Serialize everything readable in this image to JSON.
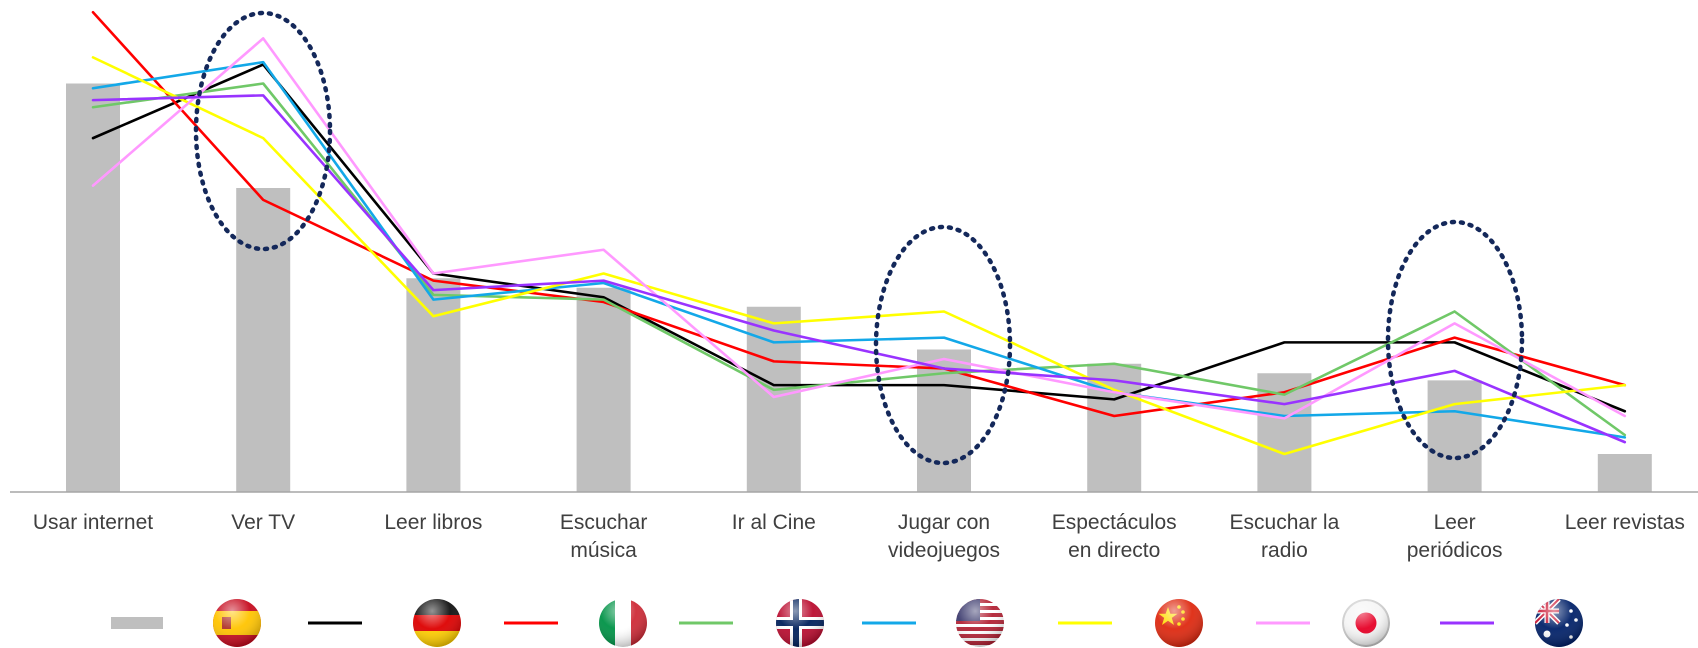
{
  "chart_data": {
    "type": "bar",
    "categories": [
      [
        "Usar internet"
      ],
      [
        "Ver TV"
      ],
      [
        "Leer libros"
      ],
      [
        "Escuchar",
        "música"
      ],
      [
        "Ir al Cine"
      ],
      [
        "Jugar con",
        "videojuegos"
      ],
      [
        "Espectáculos",
        "en directo"
      ],
      [
        "Escuchar la",
        "radio"
      ],
      [
        "Leer",
        "periódicos"
      ],
      [
        "Leer revistas"
      ]
    ],
    "ylim": [
      0,
      100
    ],
    "grid": false,
    "legend_position": "bottom",
    "series": [
      {
        "kind": "bar",
        "flag": "spain-flag-icon",
        "color": "#bfbfbf",
        "values": [
          86,
          64,
          45,
          43,
          39,
          30,
          27,
          25,
          23.5,
          8
        ]
      },
      {
        "kind": "line",
        "flag": "germany-flag-icon",
        "color": "#000000",
        "values": [
          74.5,
          90,
          46,
          41,
          22.5,
          22.5,
          19.5,
          31.5,
          31.5,
          17
        ]
      },
      {
        "kind": "line",
        "flag": "italy-flag-icon",
        "color": "#ff0000",
        "values": [
          101,
          61.5,
          44.5,
          40,
          27.5,
          26,
          16,
          21,
          32.5,
          22.5
        ]
      },
      {
        "kind": "line",
        "flag": "norway-flag-icon",
        "color": "#70c868",
        "values": [
          81,
          86,
          41.5,
          40.5,
          21.5,
          25,
          27,
          20.5,
          38,
          12
        ]
      },
      {
        "kind": "line",
        "flag": "usa-flag-icon",
        "color": "#13a8e8",
        "values": [
          85,
          90.5,
          40.5,
          44,
          31.5,
          32.5,
          21,
          16,
          17,
          11.5
        ]
      },
      {
        "kind": "line",
        "flag": "china-flag-icon",
        "color": "#ffff00",
        "values": [
          91.5,
          74.5,
          37,
          46,
          35.5,
          38,
          21.5,
          8,
          18.5,
          22.5
        ]
      },
      {
        "kind": "line",
        "flag": "japan-flag-icon",
        "color": "#ff99ff",
        "values": [
          64.5,
          95.5,
          46,
          51,
          20,
          28,
          21,
          15.5,
          35.5,
          16
        ]
      },
      {
        "kind": "line",
        "flag": "australia-flag-icon",
        "color": "#9933ff",
        "values": [
          82.5,
          83.5,
          42.5,
          44.5,
          34,
          26,
          23.5,
          18.5,
          25.5,
          10.5
        ]
      }
    ]
  }
}
